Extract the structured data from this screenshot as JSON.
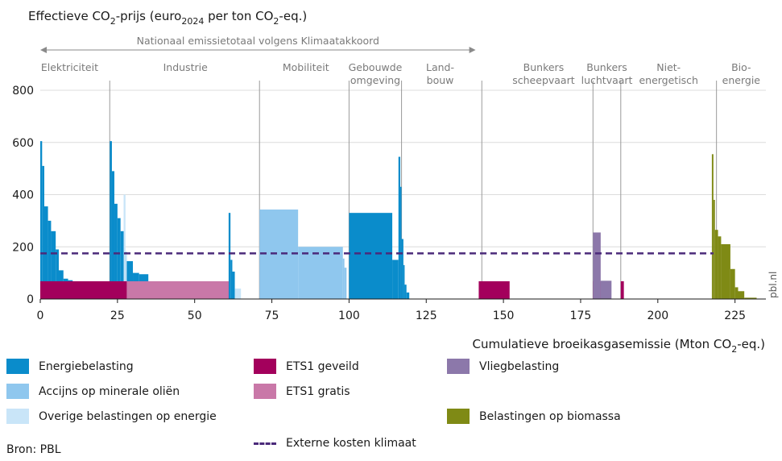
{
  "chart_data": {
    "type": "bar",
    "title": "Effectieve CO2-prijs (euro2024 per ton CO2-eq.)",
    "title_parts": {
      "a": "Effectieve CO",
      "b": "2",
      "c": "-prijs (euro",
      "d": "2024",
      "e": " per ton CO",
      "f": "2",
      "g": "-eq.)"
    },
    "xlabel": "Cumulatieve broeikasgasemissie (Mton CO2-eq.)",
    "xlabel_parts": {
      "a": "Cumulatieve broeikasgasemissie (Mton CO",
      "b": "2",
      "c": "-eq.)"
    },
    "xlim": [
      0,
      235
    ],
    "ylim": [
      0,
      800
    ],
    "x_ticks": [
      0,
      25,
      50,
      75,
      100,
      125,
      150,
      175,
      200,
      225
    ],
    "y_ticks": [
      0,
      200,
      400,
      600,
      800
    ],
    "grid": false,
    "national_total_label": "Nationaal emissietotaal volgens Klimaatakkoord",
    "national_total_range": [
      0,
      141
    ],
    "sector_boundaries": [
      22.5,
      71,
      100,
      117,
      143,
      179,
      188,
      219
    ],
    "sectors": [
      {
        "label": "Elektriciteit",
        "x": 9.5
      },
      {
        "label": "Industrie",
        "x": 47
      },
      {
        "label": "Mobiliteit",
        "x": 86
      },
      {
        "label": "Gebouwde omgeving",
        "x": 108.5
      },
      {
        "label": "Land- bouw",
        "x": 129.5
      },
      {
        "label": "Bunkers scheepvaart",
        "x": 163
      },
      {
        "label": "Bunkers luchtvaart",
        "x": 183.5
      },
      {
        "label": "Niet- energetisch",
        "x": 203.5
      },
      {
        "label": "Bio- energie",
        "x": 227
      }
    ],
    "external_cost": 175,
    "series": [
      {
        "name": "Energiebelasting",
        "color": "#0a8ccb",
        "blocks": [
          [
            0,
            0.6,
            605
          ],
          [
            0.6,
            1.3,
            510
          ],
          [
            1.3,
            2.5,
            355
          ],
          [
            2.5,
            3.5,
            300
          ],
          [
            3.5,
            5,
            260
          ],
          [
            5,
            6,
            190
          ],
          [
            6,
            7.5,
            110
          ],
          [
            7.5,
            9,
            78
          ],
          [
            9,
            10.5,
            72
          ],
          [
            22.5,
            23.2,
            605
          ],
          [
            23.2,
            24,
            490
          ],
          [
            24,
            25,
            365
          ],
          [
            25,
            26,
            310
          ],
          [
            26,
            27,
            260
          ],
          [
            27,
            28,
            180
          ],
          [
            28,
            30,
            145
          ],
          [
            30,
            32,
            100
          ],
          [
            32,
            35,
            95
          ],
          [
            61,
            61.6,
            330
          ],
          [
            61.6,
            62.2,
            150
          ],
          [
            62.2,
            63,
            105
          ],
          [
            100,
            114,
            330
          ],
          [
            114,
            116,
            150
          ],
          [
            116,
            116.6,
            545
          ],
          [
            116.6,
            117,
            430
          ],
          [
            117,
            117.6,
            230
          ],
          [
            117.6,
            118,
            130
          ],
          [
            118,
            118.6,
            55
          ],
          [
            118.6,
            119.5,
            25
          ]
        ]
      },
      {
        "name": "Accijns op minerale oliën",
        "color": "#8fc7ee",
        "blocks": [
          [
            71,
            83.5,
            343
          ],
          [
            83.5,
            98,
            200
          ],
          [
            98,
            98.5,
            155
          ],
          [
            98.5,
            99.2,
            120
          ]
        ]
      },
      {
        "name": "Overige belastingen op energie",
        "color": "#c9e5f8",
        "blocks": [
          [
            27,
            27.6,
            400
          ],
          [
            27.6,
            28,
            175
          ],
          [
            63,
            65,
            40
          ]
        ]
      },
      {
        "name": "ETS1 geveild",
        "color": "#a3005c",
        "blocks": [
          [
            0,
            61,
            68
          ],
          [
            142,
            152,
            68
          ],
          [
            179,
            181.5,
            68
          ],
          [
            188,
            189,
            68
          ]
        ]
      },
      {
        "name": "ETS1 gratis",
        "color": "#c978a8",
        "blocks": [
          [
            28,
            61,
            68
          ]
        ]
      },
      {
        "name": "Vliegbelasting",
        "color": "#8c78aa",
        "blocks": [
          [
            179,
            181.5,
            255
          ],
          [
            181.5,
            185,
            70
          ]
        ]
      },
      {
        "name": "Belastingen op biomassa",
        "color": "#7f8a15",
        "blocks": [
          [
            217.5,
            218,
            555
          ],
          [
            218,
            218.5,
            380
          ],
          [
            218.5,
            219.5,
            265
          ],
          [
            219.5,
            220.5,
            240
          ],
          [
            220.5,
            223.5,
            210
          ],
          [
            223.5,
            225,
            115
          ],
          [
            225,
            226,
            45
          ],
          [
            226,
            228,
            30
          ],
          [
            228,
            232,
            5
          ]
        ]
      }
    ],
    "legend": [
      {
        "name": "Energiebelasting",
        "color": "#0a8ccb"
      },
      {
        "name": "ETS1 geveild",
        "color": "#a3005c"
      },
      {
        "name": "Vliegbelasting",
        "color": "#8c78aa"
      },
      {
        "name": "Accijns op minerale oliën",
        "color": "#8fc7ee"
      },
      {
        "name": "ETS1 gratis",
        "color": "#c978a8"
      },
      {
        "name": "Overige belastingen op energie",
        "color": "#c9e5f8"
      },
      {
        "name": "Belastingen op biomassa",
        "color": "#7f8a15"
      },
      {
        "name": "Externe kosten klimaat",
        "color": "#4b2a7a",
        "style": "dashed"
      }
    ],
    "watermark": "pbl.nl",
    "source": "Bron: PBL"
  }
}
